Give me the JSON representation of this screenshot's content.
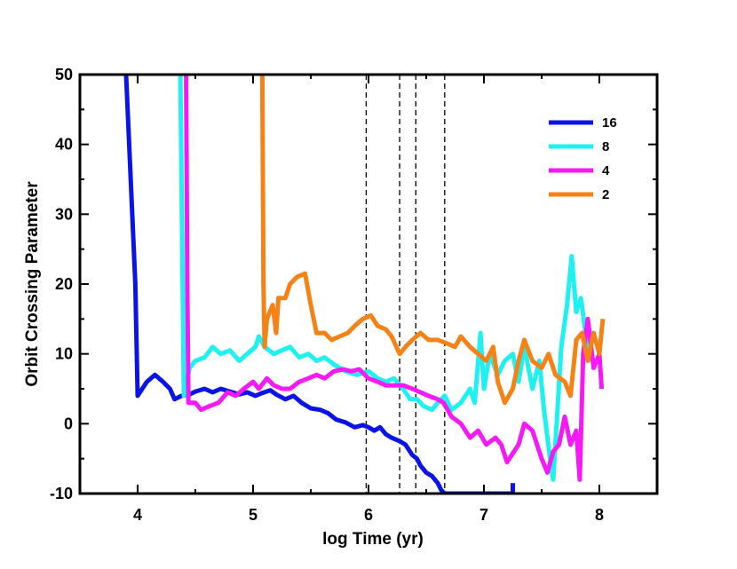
{
  "chart_data": {
    "type": "line",
    "xlabel": "log Time (yr)",
    "ylabel": "Orbit Crossing Parameter",
    "xlim": [
      3.5,
      8.5
    ],
    "ylim": [
      -10,
      50
    ],
    "xticks": [
      4,
      5,
      6,
      7,
      8
    ],
    "yticks": [
      -10,
      0,
      10,
      20,
      30,
      40,
      50
    ],
    "xtick_labels": [
      "4",
      "5",
      "6",
      "7",
      "8"
    ],
    "ytick_labels": [
      "-10",
      "0",
      "10",
      "20",
      "30",
      "40",
      "50"
    ],
    "vlines": [
      5.98,
      6.27,
      6.41,
      6.66
    ],
    "legend_position": "top-right",
    "series": [
      {
        "name": "16",
        "color": "#0a14e6",
        "points": [
          [
            3.9,
            50
          ],
          [
            3.98,
            20
          ],
          [
            4.0,
            4
          ],
          [
            4.08,
            6
          ],
          [
            4.15,
            7
          ],
          [
            4.22,
            6
          ],
          [
            4.28,
            5
          ],
          [
            4.32,
            3.5
          ],
          [
            4.38,
            4
          ],
          [
            4.45,
            4.2
          ],
          [
            4.5,
            4.6
          ],
          [
            4.58,
            5
          ],
          [
            4.65,
            4.5
          ],
          [
            4.72,
            5
          ],
          [
            4.8,
            4.6
          ],
          [
            4.88,
            4.2
          ],
          [
            4.95,
            4.5
          ],
          [
            5.02,
            4
          ],
          [
            5.08,
            4.4
          ],
          [
            5.15,
            4.8
          ],
          [
            5.2,
            4.2
          ],
          [
            5.28,
            3.5
          ],
          [
            5.35,
            4
          ],
          [
            5.42,
            3
          ],
          [
            5.5,
            2.2
          ],
          [
            5.58,
            2
          ],
          [
            5.65,
            1.5
          ],
          [
            5.72,
            0.6
          ],
          [
            5.8,
            0.2
          ],
          [
            5.88,
            -0.5
          ],
          [
            5.95,
            -0.2
          ],
          [
            6.0,
            -0.5
          ],
          [
            6.05,
            -1
          ],
          [
            6.1,
            -0.5
          ],
          [
            6.15,
            -1.5
          ],
          [
            6.2,
            -2
          ],
          [
            6.27,
            -2.5
          ],
          [
            6.32,
            -3
          ],
          [
            6.38,
            -4.5
          ],
          [
            6.42,
            -5
          ],
          [
            6.45,
            -6
          ],
          [
            6.5,
            -7
          ],
          [
            6.55,
            -7.5
          ],
          [
            6.6,
            -8.5
          ],
          [
            6.63,
            -9.5
          ],
          [
            6.66,
            -10
          ],
          [
            7.0,
            -10
          ],
          [
            7.25,
            -10
          ],
          [
            7.25,
            -8.5
          ]
        ]
      },
      {
        "name": "8",
        "color": "#1ff0f0",
        "points": [
          [
            4.37,
            50
          ],
          [
            4.39,
            20
          ],
          [
            4.4,
            4
          ],
          [
            4.45,
            8
          ],
          [
            4.5,
            9
          ],
          [
            4.58,
            9.5
          ],
          [
            4.65,
            11
          ],
          [
            4.72,
            10
          ],
          [
            4.8,
            10.5
          ],
          [
            4.88,
            9
          ],
          [
            4.95,
            10
          ],
          [
            5.02,
            11
          ],
          [
            5.05,
            12.5
          ],
          [
            5.1,
            11
          ],
          [
            5.18,
            10
          ],
          [
            5.25,
            10.5
          ],
          [
            5.32,
            11
          ],
          [
            5.4,
            9.5
          ],
          [
            5.48,
            10
          ],
          [
            5.55,
            9
          ],
          [
            5.62,
            9.5
          ],
          [
            5.7,
            8.5
          ],
          [
            5.8,
            7.5
          ],
          [
            5.9,
            7
          ],
          [
            6.0,
            7.5
          ],
          [
            6.08,
            6.5
          ],
          [
            6.15,
            6
          ],
          [
            6.22,
            6.5
          ],
          [
            6.3,
            5
          ],
          [
            6.36,
            3.5
          ],
          [
            6.42,
            3.5
          ],
          [
            6.48,
            2.5
          ],
          [
            6.55,
            2
          ],
          [
            6.6,
            3
          ],
          [
            6.66,
            4
          ],
          [
            6.72,
            2
          ],
          [
            6.8,
            3
          ],
          [
            6.88,
            5
          ],
          [
            6.92,
            3
          ],
          [
            6.97,
            13
          ],
          [
            7.0,
            5
          ],
          [
            7.05,
            10
          ],
          [
            7.12,
            7
          ],
          [
            7.18,
            9
          ],
          [
            7.25,
            10
          ],
          [
            7.3,
            6
          ],
          [
            7.35,
            11
          ],
          [
            7.42,
            5
          ],
          [
            7.48,
            9
          ],
          [
            7.52,
            2
          ],
          [
            7.55,
            -2
          ],
          [
            7.58,
            -6
          ],
          [
            7.6,
            -8
          ],
          [
            7.63,
            0
          ],
          [
            7.67,
            11
          ],
          [
            7.72,
            17
          ],
          [
            7.76,
            24
          ],
          [
            7.8,
            16
          ],
          [
            7.84,
            18
          ],
          [
            7.88,
            13
          ],
          [
            7.91,
            9
          ]
        ]
      },
      {
        "name": "4",
        "color": "#f51af5",
        "points": [
          [
            4.42,
            50
          ],
          [
            4.43,
            20
          ],
          [
            4.44,
            3
          ],
          [
            4.5,
            3
          ],
          [
            4.55,
            2
          ],
          [
            4.62,
            2.5
          ],
          [
            4.7,
            3
          ],
          [
            4.78,
            4.5
          ],
          [
            4.85,
            4
          ],
          [
            4.92,
            5
          ],
          [
            5.0,
            6
          ],
          [
            5.05,
            5
          ],
          [
            5.12,
            6.5
          ],
          [
            5.18,
            5.5
          ],
          [
            5.25,
            5
          ],
          [
            5.32,
            5
          ],
          [
            5.4,
            6
          ],
          [
            5.48,
            6.5
          ],
          [
            5.55,
            7
          ],
          [
            5.62,
            6.5
          ],
          [
            5.7,
            7.5
          ],
          [
            5.78,
            7.8
          ],
          [
            5.85,
            7.5
          ],
          [
            5.92,
            7.8
          ],
          [
            6.0,
            6.5
          ],
          [
            6.08,
            6
          ],
          [
            6.15,
            5.5
          ],
          [
            6.22,
            5.5
          ],
          [
            6.3,
            5.5
          ],
          [
            6.38,
            5
          ],
          [
            6.45,
            4.5
          ],
          [
            6.52,
            4
          ],
          [
            6.6,
            3.5
          ],
          [
            6.65,
            3
          ],
          [
            6.72,
            1
          ],
          [
            6.8,
            0
          ],
          [
            6.88,
            -2
          ],
          [
            6.95,
            -1
          ],
          [
            7.02,
            -3
          ],
          [
            7.1,
            -2
          ],
          [
            7.15,
            -3
          ],
          [
            7.2,
            -5.5
          ],
          [
            7.3,
            -3
          ],
          [
            7.35,
            0
          ],
          [
            7.42,
            -1
          ],
          [
            7.5,
            -5
          ],
          [
            7.55,
            -7
          ],
          [
            7.6,
            -4
          ],
          [
            7.65,
            -3
          ],
          [
            7.7,
            1
          ],
          [
            7.75,
            -3
          ],
          [
            7.8,
            -1
          ],
          [
            7.83,
            -8
          ],
          [
            7.86,
            10
          ],
          [
            7.9,
            15
          ],
          [
            7.95,
            8
          ],
          [
            8.0,
            10
          ],
          [
            8.02,
            5
          ]
        ]
      },
      {
        "name": "2",
        "color": "#f58216",
        "points": [
          [
            5.08,
            50
          ],
          [
            5.09,
            20
          ],
          [
            5.1,
            11
          ],
          [
            5.12,
            15
          ],
          [
            5.17,
            17
          ],
          [
            5.2,
            13
          ],
          [
            5.22,
            18
          ],
          [
            5.28,
            18
          ],
          [
            5.32,
            20
          ],
          [
            5.38,
            21
          ],
          [
            5.45,
            21.5
          ],
          [
            5.5,
            17
          ],
          [
            5.55,
            13
          ],
          [
            5.62,
            13
          ],
          [
            5.68,
            12
          ],
          [
            5.75,
            12.5
          ],
          [
            5.82,
            13
          ],
          [
            5.88,
            14
          ],
          [
            5.95,
            15
          ],
          [
            6.02,
            15.5
          ],
          [
            6.08,
            14
          ],
          [
            6.15,
            13.5
          ],
          [
            6.2,
            12.5
          ],
          [
            6.27,
            10
          ],
          [
            6.32,
            11
          ],
          [
            6.38,
            12
          ],
          [
            6.45,
            13
          ],
          [
            6.52,
            12
          ],
          [
            6.6,
            12
          ],
          [
            6.68,
            11.5
          ],
          [
            6.75,
            11
          ],
          [
            6.8,
            12.5
          ],
          [
            6.88,
            11
          ],
          [
            6.95,
            10
          ],
          [
            7.02,
            9
          ],
          [
            7.08,
            11
          ],
          [
            7.12,
            6
          ],
          [
            7.18,
            3
          ],
          [
            7.25,
            5
          ],
          [
            7.3,
            9
          ],
          [
            7.35,
            12
          ],
          [
            7.42,
            9
          ],
          [
            7.5,
            8
          ],
          [
            7.56,
            10
          ],
          [
            7.62,
            7
          ],
          [
            7.7,
            6
          ],
          [
            7.75,
            4
          ],
          [
            7.8,
            12
          ],
          [
            7.85,
            13
          ],
          [
            7.9,
            9
          ],
          [
            7.95,
            13
          ],
          [
            8.0,
            10
          ],
          [
            8.03,
            15
          ]
        ]
      }
    ]
  }
}
